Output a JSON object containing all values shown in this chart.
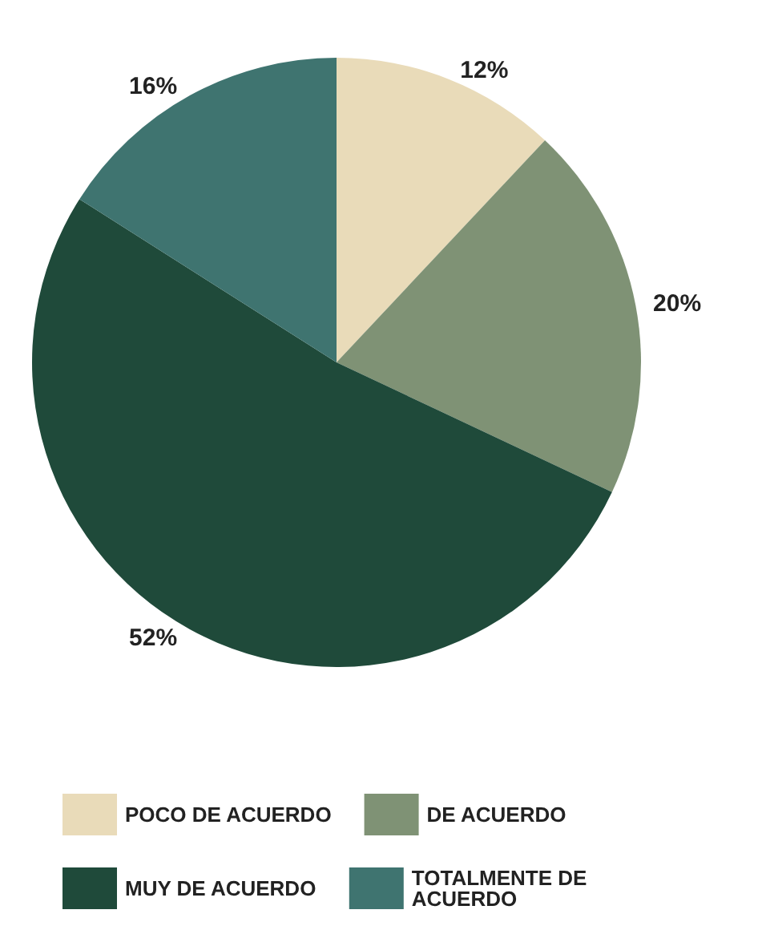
{
  "chart_data": {
    "type": "pie",
    "categories": [
      "POCO DE ACUERDO",
      "DE ACUERDO",
      "MUY DE ACUERDO",
      "TOTALMENTE DE ACUERDO"
    ],
    "values": [
      12,
      20,
      52,
      16
    ],
    "value_labels": [
      "12%",
      "20%",
      "52%",
      "16%"
    ],
    "colors": [
      "#e9dbb9",
      "#7f9275",
      "#1f4a3a",
      "#3f7470"
    ],
    "legend": "bottom"
  }
}
